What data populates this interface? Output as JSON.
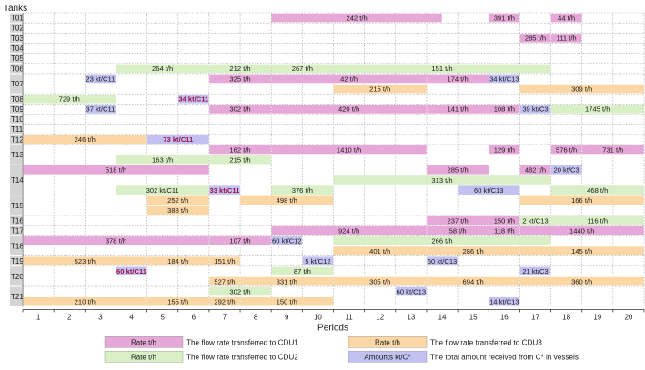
{
  "chart_data": {
    "type": "gantt",
    "title": "",
    "ylabel": "Tanks",
    "xlabel": "Periods",
    "xlim": [
      0,
      20
    ],
    "x_ticks": [
      "1",
      "2",
      "3",
      "4",
      "5",
      "6",
      "7",
      "8",
      "9",
      "10",
      "11",
      "12",
      "13",
      "14",
      "15",
      "16",
      "17",
      "18",
      "19",
      "20"
    ],
    "categories": [
      "T01",
      "T02",
      "T03",
      "T04",
      "T05",
      "T06",
      "T07",
      "T08",
      "T09",
      "T10",
      "T11",
      "T12",
      "T13",
      "T14",
      "T15",
      "T16",
      "T17",
      "T18",
      "T19",
      "T20",
      "T21"
    ],
    "row_lanes": [
      1,
      1,
      1,
      1,
      1,
      1,
      2,
      1,
      1,
      1,
      1,
      1,
      2,
      3,
      2,
      1,
      1,
      2,
      1,
      2,
      2
    ],
    "colors": {
      "cdu1": "#e6a8d8",
      "cdu2": "#d9efc6",
      "cdu3": "#fbd7a6",
      "amount": "#c2c1f1",
      "tank_label_bg": "#d4d4d4",
      "grid": "#a8a8a8"
    },
    "segments": [
      {
        "row": "T01",
        "lane": 0,
        "type": "cdu1",
        "start": 8,
        "end": 13.5,
        "label": "242 t/h"
      },
      {
        "row": "T01",
        "lane": 0,
        "type": "cdu1",
        "start": 15,
        "end": 16,
        "label": "391 t/h"
      },
      {
        "row": "T01",
        "lane": 0,
        "type": "cdu1",
        "start": 17,
        "end": 18,
        "label": "44 t/h"
      },
      {
        "row": "T03",
        "lane": 0,
        "type": "cdu1",
        "start": 16,
        "end": 17,
        "label": "285 t/h"
      },
      {
        "row": "T03",
        "lane": 0,
        "type": "cdu1",
        "start": 17,
        "end": 18,
        "label": "111 t/h"
      },
      {
        "row": "T06",
        "lane": 0,
        "type": "cdu2",
        "start": 3,
        "end": 6,
        "label": "264 t/h"
      },
      {
        "row": "T06",
        "lane": 0,
        "type": "cdu2",
        "start": 6,
        "end": 8,
        "label": "212 t/h"
      },
      {
        "row": "T06",
        "lane": 0,
        "type": "cdu2",
        "start": 8,
        "end": 10,
        "label": "267 t/h"
      },
      {
        "row": "T06",
        "lane": 0,
        "type": "cdu2",
        "start": 10,
        "end": 17,
        "label": "151 t/h"
      },
      {
        "row": "T07",
        "lane": 0,
        "type": "amount",
        "start": 2,
        "end": 3,
        "label": "23 kt/C11"
      },
      {
        "row": "T07",
        "lane": 0,
        "type": "cdu1",
        "start": 6,
        "end": 8,
        "label": "325 t/h"
      },
      {
        "row": "T07",
        "lane": 0,
        "type": "cdu1",
        "start": 8,
        "end": 13,
        "label": "42 t/h"
      },
      {
        "row": "T07",
        "lane": 0,
        "type": "cdu1",
        "start": 13,
        "end": 15,
        "label": "174 t/h"
      },
      {
        "row": "T07",
        "lane": 0,
        "type": "amount",
        "start": 15,
        "end": 16,
        "label": "34 kt/C13"
      },
      {
        "row": "T07",
        "lane": 1,
        "type": "cdu3",
        "start": 10,
        "end": 13,
        "label": "215 t/h"
      },
      {
        "row": "T07",
        "lane": 1,
        "type": "cdu3",
        "start": 16,
        "end": 20,
        "label": "309 t/h"
      },
      {
        "row": "T08",
        "lane": 0,
        "type": "cdu2",
        "start": 0,
        "end": 3,
        "label": "729 t/h"
      },
      {
        "row": "T08",
        "lane": 0,
        "type": "amount",
        "start": 5,
        "end": 6,
        "label": "34 kt/C11",
        "bold": true
      },
      {
        "row": "T09",
        "lane": 0,
        "type": "amount",
        "start": 2,
        "end": 3,
        "label": "37 kt/C11"
      },
      {
        "row": "T09",
        "lane": 0,
        "type": "cdu1",
        "start": 6,
        "end": 8,
        "label": "302 t/h"
      },
      {
        "row": "T09",
        "lane": 0,
        "type": "cdu1",
        "start": 8,
        "end": 13,
        "label": "420 t/h"
      },
      {
        "row": "T09",
        "lane": 0,
        "type": "cdu1",
        "start": 13,
        "end": 15,
        "label": "141 t/h"
      },
      {
        "row": "T09",
        "lane": 0,
        "type": "cdu1",
        "start": 15,
        "end": 16,
        "label": "108 t/h"
      },
      {
        "row": "T09",
        "lane": 0,
        "type": "amount",
        "start": 16,
        "end": 17,
        "label": "39 kt/C3"
      },
      {
        "row": "T09",
        "lane": 0,
        "type": "cdu2",
        "start": 17,
        "end": 20,
        "label": "1745 t/h"
      },
      {
        "row": "T12",
        "lane": 0,
        "type": "cdu3",
        "start": 0,
        "end": 4,
        "label": "246 t/h"
      },
      {
        "row": "T12",
        "lane": 0,
        "type": "amount",
        "start": 4,
        "end": 6,
        "label": "73 kt/C11",
        "bold": true
      },
      {
        "row": "T13",
        "lane": 0,
        "type": "cdu1",
        "start": 6,
        "end": 8,
        "label": "162 t/h"
      },
      {
        "row": "T13",
        "lane": 0,
        "type": "cdu1",
        "start": 8,
        "end": 13,
        "label": "1410 t/h"
      },
      {
        "row": "T13",
        "lane": 0,
        "type": "cdu1",
        "start": 15,
        "end": 16,
        "label": "129 t/h"
      },
      {
        "row": "T13",
        "lane": 0,
        "type": "cdu1",
        "start": 17,
        "end": 18,
        "label": "576 t/h"
      },
      {
        "row": "T13",
        "lane": 0,
        "type": "cdu1",
        "start": 18,
        "end": 20,
        "label": "731 t/h"
      },
      {
        "row": "T13",
        "lane": 1,
        "type": "cdu2",
        "start": 3,
        "end": 6,
        "label": "163 t/h"
      },
      {
        "row": "T13",
        "lane": 1,
        "type": "cdu2",
        "start": 6,
        "end": 8,
        "label": "215 t/h"
      },
      {
        "row": "T14",
        "lane": 0,
        "type": "cdu1",
        "start": 0,
        "end": 6,
        "label": "518 t/h"
      },
      {
        "row": "T14",
        "lane": 0,
        "type": "cdu1",
        "start": 13,
        "end": 15,
        "label": "285 t/h"
      },
      {
        "row": "T14",
        "lane": 0,
        "type": "cdu1",
        "start": 16,
        "end": 17,
        "label": "482 t/h"
      },
      {
        "row": "T14",
        "lane": 0,
        "type": "amount",
        "start": 17,
        "end": 18,
        "label": "20 kt/C3"
      },
      {
        "row": "T14",
        "lane": 1,
        "type": "cdu2",
        "start": 10,
        "end": 17,
        "label": "313 t/h"
      },
      {
        "row": "T14",
        "lane": 2,
        "type": "cdu2",
        "start": 3,
        "end": 6,
        "label": "302 kt/C11"
      },
      {
        "row": "T14",
        "lane": 2,
        "type": "amount",
        "start": 6,
        "end": 7,
        "label": "33 kt/C11",
        "bold": true
      },
      {
        "row": "T14",
        "lane": 2,
        "type": "cdu2",
        "start": 8,
        "end": 10,
        "label": "376 t/h"
      },
      {
        "row": "T14",
        "lane": 2,
        "type": "amount",
        "start": 14,
        "end": 16,
        "label": "60 kt/C13"
      },
      {
        "row": "T14",
        "lane": 2,
        "type": "cdu2",
        "start": 17,
        "end": 20,
        "label": "468 t/h"
      },
      {
        "row": "T15",
        "lane": 0,
        "type": "cdu3",
        "start": 4,
        "end": 6,
        "label": "252 t/h"
      },
      {
        "row": "T15",
        "lane": 0,
        "type": "cdu3",
        "start": 7,
        "end": 10,
        "label": "498 t/h"
      },
      {
        "row": "T15",
        "lane": 0,
        "type": "cdu3",
        "start": 16,
        "end": 20,
        "label": "166 t/h"
      },
      {
        "row": "T15",
        "lane": 1,
        "type": "cdu3",
        "start": 4,
        "end": 6,
        "label": "388 t/h"
      },
      {
        "row": "T16",
        "lane": 0,
        "type": "cdu1",
        "start": 13,
        "end": 15,
        "label": "237 t/h"
      },
      {
        "row": "T16",
        "lane": 0,
        "type": "cdu1",
        "start": 15,
        "end": 16,
        "label": "150 t/h"
      },
      {
        "row": "T16",
        "lane": 0,
        "type": "cdu2",
        "start": 16,
        "end": 17,
        "label": "2 kt/C13"
      },
      {
        "row": "T16",
        "lane": 0,
        "type": "cdu2",
        "start": 17,
        "end": 20,
        "label": "116 t/h"
      },
      {
        "row": "T17",
        "lane": 0,
        "type": "cdu1",
        "start": 8,
        "end": 13,
        "label": "924 t/h"
      },
      {
        "row": "T17",
        "lane": 0,
        "type": "cdu1",
        "start": 13,
        "end": 15,
        "label": "58 t/h"
      },
      {
        "row": "T17",
        "lane": 0,
        "type": "cdu1",
        "start": 15,
        "end": 16,
        "label": "118 t/h"
      },
      {
        "row": "T17",
        "lane": 0,
        "type": "cdu1",
        "start": 16,
        "end": 20,
        "label": "1440 t/h"
      },
      {
        "row": "T18",
        "lane": 0,
        "type": "cdu1",
        "start": 0,
        "end": 6,
        "label": "378 t/h"
      },
      {
        "row": "T18",
        "lane": 0,
        "type": "cdu1",
        "start": 6,
        "end": 8,
        "label": "107 t/h"
      },
      {
        "row": "T18",
        "lane": 0,
        "type": "amount",
        "start": 8,
        "end": 9,
        "label": "60 kt/C12"
      },
      {
        "row": "T18",
        "lane": 0,
        "type": "cdu2",
        "start": 10,
        "end": 17,
        "label": "266 t/h"
      },
      {
        "row": "T18",
        "lane": 1,
        "type": "cdu3",
        "start": 10,
        "end": 13,
        "label": "401 t/h"
      },
      {
        "row": "T18",
        "lane": 1,
        "type": "cdu3",
        "start": 13,
        "end": 16,
        "label": "286 t/h"
      },
      {
        "row": "T18",
        "lane": 1,
        "type": "cdu3",
        "start": 16,
        "end": 20,
        "label": "145 t/h"
      },
      {
        "row": "T19",
        "lane": 0,
        "type": "cdu3",
        "start": 0,
        "end": 4,
        "label": "523 t/h"
      },
      {
        "row": "T19",
        "lane": 0,
        "type": "cdu3",
        "start": 4,
        "end": 6,
        "label": "184 t/h"
      },
      {
        "row": "T19",
        "lane": 0,
        "type": "cdu3",
        "start": 6,
        "end": 7,
        "label": "151 t/h"
      },
      {
        "row": "T19",
        "lane": 0,
        "type": "amount",
        "start": 9,
        "end": 10,
        "label": "5 kt/C12"
      },
      {
        "row": "T19",
        "lane": 0,
        "type": "amount",
        "start": 13,
        "end": 14,
        "label": "60 kt/C13"
      },
      {
        "row": "T20",
        "lane": 0,
        "type": "amount",
        "start": 3,
        "end": 4,
        "label": "60 kt/C11",
        "bold": true
      },
      {
        "row": "T20",
        "lane": 0,
        "type": "cdu2",
        "start": 8,
        "end": 10,
        "label": "87 t/h"
      },
      {
        "row": "T20",
        "lane": 0,
        "type": "amount",
        "start": 16,
        "end": 17,
        "label": "21 kt/C3"
      },
      {
        "row": "T20",
        "lane": 1,
        "type": "cdu3",
        "start": 6,
        "end": 7,
        "label": "527 t/h"
      },
      {
        "row": "T20",
        "lane": 1,
        "type": "cdu3",
        "start": 7,
        "end": 10,
        "label": "331 t/h"
      },
      {
        "row": "T20",
        "lane": 1,
        "type": "cdu3",
        "start": 10,
        "end": 13,
        "label": "305 t/h"
      },
      {
        "row": "T20",
        "lane": 1,
        "type": "cdu3",
        "start": 13,
        "end": 16,
        "label": "694 t/h"
      },
      {
        "row": "T20",
        "lane": 1,
        "type": "cdu3",
        "start": 16,
        "end": 20,
        "label": "360 t/h"
      },
      {
        "row": "T21",
        "lane": 0,
        "type": "cdu2",
        "start": 6,
        "end": 8,
        "label": "302 t/h"
      },
      {
        "row": "T21",
        "lane": 0,
        "type": "amount",
        "start": 12,
        "end": 13,
        "label": "60 kt/C13"
      },
      {
        "row": "T21",
        "lane": 1,
        "type": "cdu3",
        "start": 0,
        "end": 4,
        "label": "210 t/h"
      },
      {
        "row": "T21",
        "lane": 1,
        "type": "cdu3",
        "start": 4,
        "end": 6,
        "label": "155 t/h"
      },
      {
        "row": "T21",
        "lane": 1,
        "type": "cdu3",
        "start": 6,
        "end": 7,
        "label": "292 t/h"
      },
      {
        "row": "T21",
        "lane": 1,
        "type": "cdu3",
        "start": 7,
        "end": 10,
        "label": "150 t/h"
      },
      {
        "row": "T21",
        "lane": 1,
        "type": "amount",
        "start": 15,
        "end": 16,
        "label": "14 kt/C13"
      }
    ],
    "legend": [
      {
        "type": "cdu1",
        "label": "Rate t/h",
        "description": "The flow rate transferred to CDU1"
      },
      {
        "type": "cdu3",
        "label": "Rate t/h",
        "description": "The flow rate transferred to CDU3"
      },
      {
        "type": "cdu2",
        "label": "Rate t/h",
        "description": "The flow rate transferred to CDU2"
      },
      {
        "type": "amount",
        "label": "Amounts kt/C*",
        "description": "The total amount received from C* in vessels"
      }
    ]
  }
}
